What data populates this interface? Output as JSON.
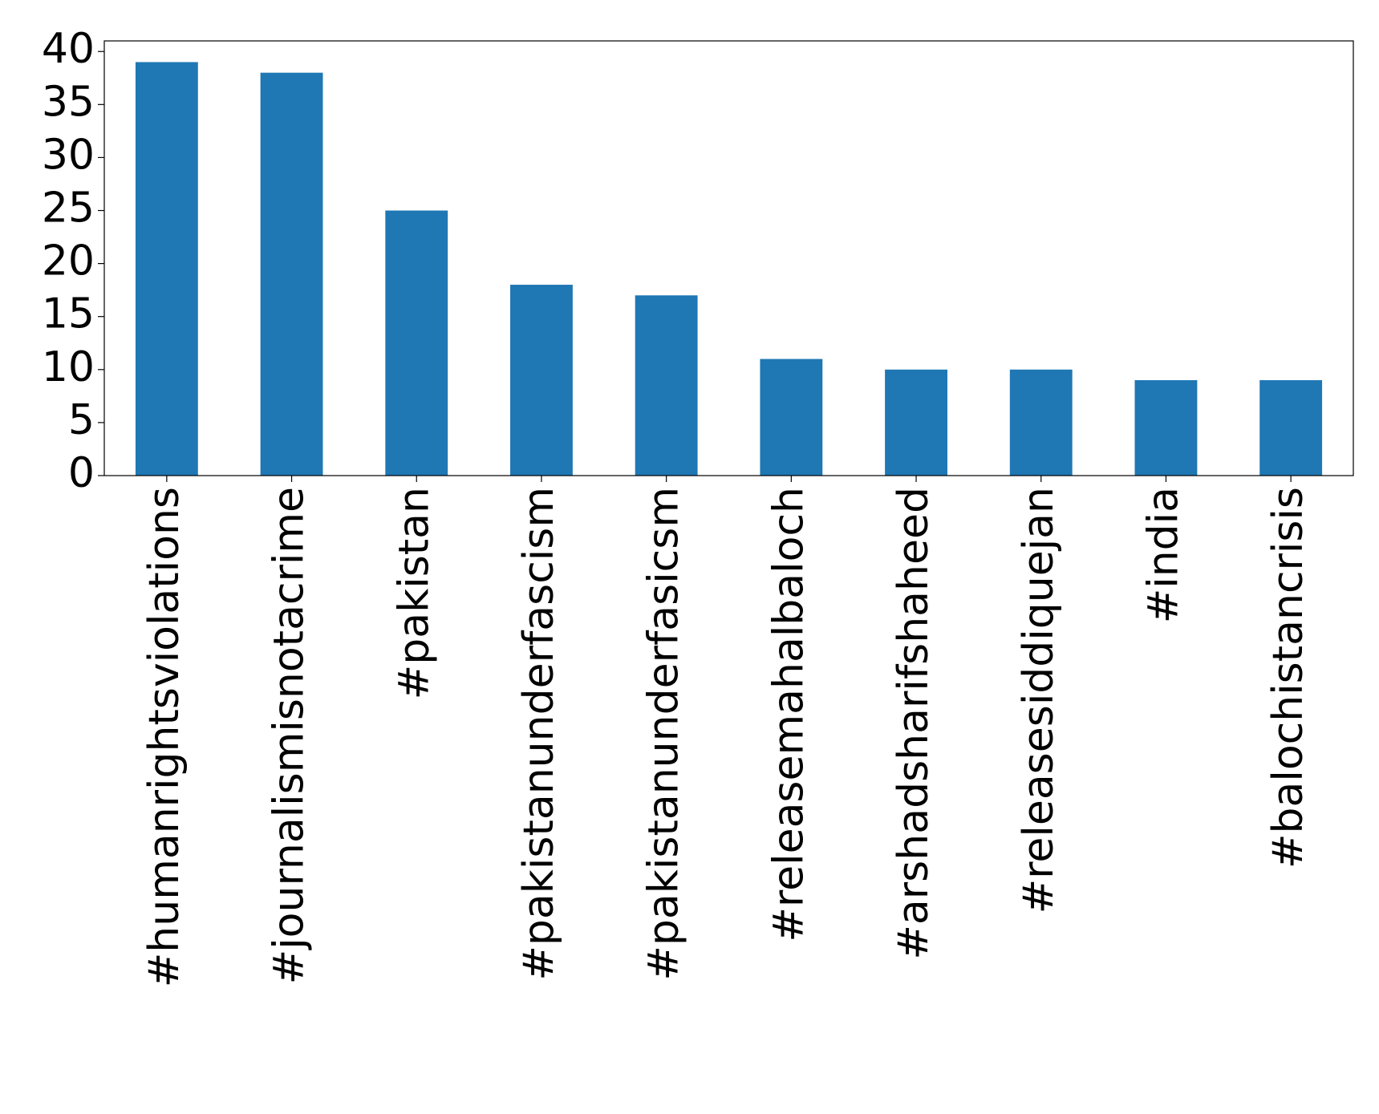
{
  "chart_data": {
    "type": "bar",
    "categories": [
      "#humanrightsviolations",
      "#journalismisnotacrime",
      "#pakistan",
      "#pakistanunderfascism",
      "#pakistanunderfasicsm",
      "#releasemahalbaloch",
      "#arshadsharifshaheed",
      "#releasesiddiquejan",
      "#india",
      "#balochistancrisis"
    ],
    "values": [
      39,
      38,
      25,
      18,
      17,
      11,
      10,
      10,
      9,
      9
    ],
    "color": "#1f77b4",
    "ylim": [
      0,
      41
    ],
    "yticks": [
      0,
      5,
      10,
      15,
      20,
      25,
      30,
      35,
      40
    ],
    "grid": false
  }
}
